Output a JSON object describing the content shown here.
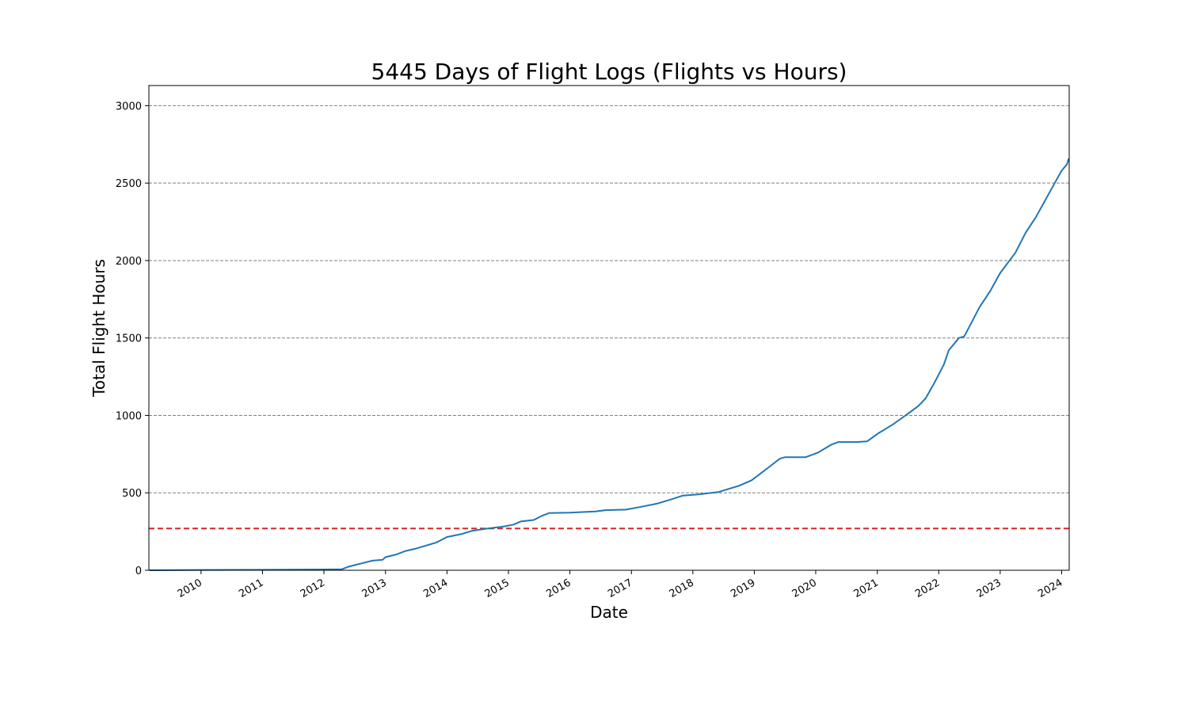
{
  "chart_data": {
    "type": "line",
    "title": "5445 Days of Flight Logs (Flights vs Hours)",
    "xlabel": "Date",
    "ylabel": "Total Flight Hours",
    "xlim": [
      "2009-02-25",
      "2024-02-15"
    ],
    "ylim": [
      0,
      3130
    ],
    "x_ticks": [
      "2010",
      "2011",
      "2012",
      "2013",
      "2014",
      "2015",
      "2016",
      "2017",
      "2018",
      "2019",
      "2020",
      "2021",
      "2022",
      "2023",
      "2024"
    ],
    "y_ticks": [
      "0",
      "500",
      "1000",
      "1500",
      "2000",
      "2500",
      "3000"
    ],
    "grid": "y-dashed",
    "reference_line": {
      "y": 270,
      "color": "#d62728",
      "style": "dashed"
    },
    "series": [
      {
        "color": "#1f77b4",
        "points": [
          [
            "2009-03-01",
            0
          ],
          [
            "2010-01-01",
            2
          ],
          [
            "2011-01-01",
            3
          ],
          [
            "2012-01-01",
            5
          ],
          [
            "2012-04-15",
            6
          ],
          [
            "2012-06-01",
            25
          ],
          [
            "2012-09-01",
            50
          ],
          [
            "2012-10-15",
            62
          ],
          [
            "2012-12-15",
            68
          ],
          [
            "2013-01-01",
            85
          ],
          [
            "2013-03-01",
            100
          ],
          [
            "2013-05-01",
            125
          ],
          [
            "2013-07-01",
            140
          ],
          [
            "2013-09-01",
            160
          ],
          [
            "2013-11-01",
            180
          ],
          [
            "2014-01-01",
            215
          ],
          [
            "2014-04-01",
            235
          ],
          [
            "2014-06-01",
            255
          ],
          [
            "2014-09-01",
            270
          ],
          [
            "2014-12-01",
            282
          ],
          [
            "2015-02-01",
            295
          ],
          [
            "2015-03-15",
            315
          ],
          [
            "2015-06-01",
            325
          ],
          [
            "2015-07-15",
            350
          ],
          [
            "2015-09-01",
            370
          ],
          [
            "2016-01-01",
            372
          ],
          [
            "2016-06-01",
            380
          ],
          [
            "2016-08-01",
            388
          ],
          [
            "2016-12-01",
            392
          ],
          [
            "2017-03-01",
            410
          ],
          [
            "2017-06-01",
            430
          ],
          [
            "2017-09-01",
            460
          ],
          [
            "2017-11-01",
            482
          ],
          [
            "2018-02-01",
            490
          ],
          [
            "2018-06-01",
            505
          ],
          [
            "2018-08-01",
            525
          ],
          [
            "2018-10-01",
            545
          ],
          [
            "2018-12-15",
            580
          ],
          [
            "2019-02-01",
            620
          ],
          [
            "2019-04-15",
            680
          ],
          [
            "2019-06-01",
            720
          ],
          [
            "2019-07-01",
            730
          ],
          [
            "2019-11-01",
            730
          ],
          [
            "2020-01-15",
            760
          ],
          [
            "2020-04-01",
            810
          ],
          [
            "2020-05-15",
            828
          ],
          [
            "2020-09-01",
            828
          ],
          [
            "2020-11-01",
            832
          ],
          [
            "2021-01-01",
            880
          ],
          [
            "2021-04-01",
            940
          ],
          [
            "2021-07-01",
            1010
          ],
          [
            "2021-09-01",
            1060
          ],
          [
            "2021-10-15",
            1110
          ],
          [
            "2021-12-01",
            1200
          ],
          [
            "2022-02-01",
            1330
          ],
          [
            "2022-03-01",
            1420
          ],
          [
            "2022-05-01",
            1500
          ],
          [
            "2022-06-01",
            1510
          ],
          [
            "2022-07-15",
            1600
          ],
          [
            "2022-09-01",
            1700
          ],
          [
            "2022-11-01",
            1800
          ],
          [
            "2023-01-01",
            1920
          ],
          [
            "2023-04-01",
            2050
          ],
          [
            "2023-06-01",
            2180
          ],
          [
            "2023-08-01",
            2280
          ],
          [
            "2023-10-01",
            2400
          ],
          [
            "2023-12-01",
            2520
          ],
          [
            "2024-01-01",
            2580
          ],
          [
            "2024-02-01",
            2620
          ],
          [
            "2024-02-10",
            2650
          ],
          [
            "2024-02-13",
            2660
          ]
        ]
      }
    ]
  }
}
